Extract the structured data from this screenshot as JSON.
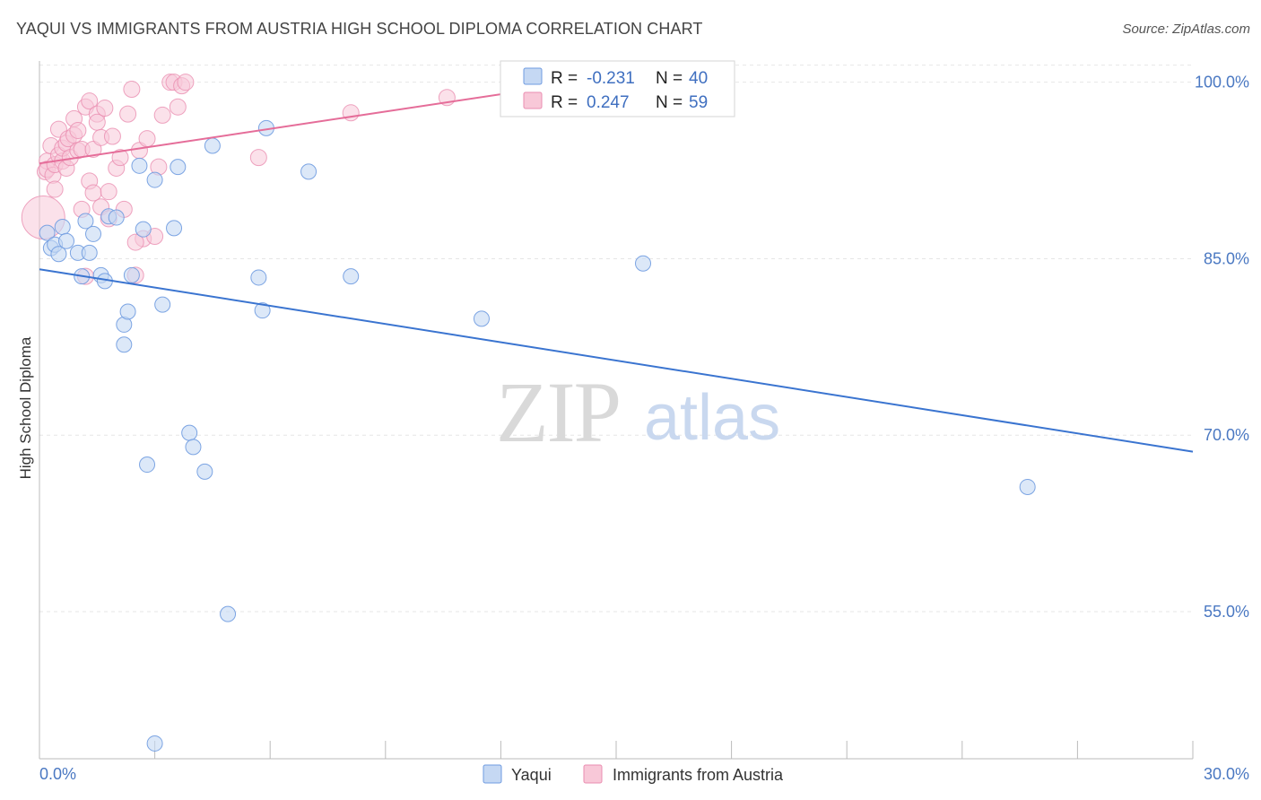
{
  "title": "YAQUI VS IMMIGRANTS FROM AUSTRIA HIGH SCHOOL DIPLOMA CORRELATION CHART",
  "source": "Source: ZipAtlas.com",
  "watermark": {
    "zip": "ZIP",
    "atlas": "atlas"
  },
  "colors": {
    "yaqui_fill": "#c5d8f3",
    "yaqui_stroke": "#6f9be0",
    "yaqui_line": "#3a74d0",
    "austria_fill": "#f8c8d8",
    "austria_stroke": "#ea8db0",
    "austria_line": "#e56d99",
    "grid": "#e6e6e6",
    "axis_text": "#4a78c2"
  },
  "legend": {
    "r_label": "R =",
    "n_label": "N =",
    "rows": [
      {
        "r": "-0.231",
        "n": "40"
      },
      {
        "r": "0.247",
        "n": "59"
      }
    ]
  },
  "bottom_legend": [
    "Yaqui",
    "Immigrants from Austria"
  ],
  "chart_data": {
    "type": "scatter",
    "title": "YAQUI VS IMMIGRANTS FROM AUSTRIA HIGH SCHOOL DIPLOMA CORRELATION CHART",
    "xlabel": "",
    "ylabel": "High School Diploma",
    "xlim": [
      0,
      30
    ],
    "ylim": [
      42.5,
      101.5
    ],
    "x_tick_labels": [
      "0.0%",
      "30.0%"
    ],
    "y_ticks": [
      55,
      70,
      85,
      100
    ],
    "y_tick_labels": [
      "55.0%",
      "70.0%",
      "85.0%",
      "100.0%"
    ],
    "grid": true,
    "series": [
      {
        "name": "Yaqui",
        "r": -0.231,
        "n": 40,
        "trend": {
          "x": [
            0,
            30
          ],
          "y": [
            84.1,
            68.6
          ]
        },
        "points": [
          [
            0.2,
            87.2
          ],
          [
            0.3,
            85.9
          ],
          [
            0.4,
            86.2
          ],
          [
            0.5,
            85.4
          ],
          [
            0.6,
            87.7
          ],
          [
            0.7,
            86.5
          ],
          [
            1.0,
            85.5
          ],
          [
            1.1,
            83.5
          ],
          [
            1.2,
            88.2
          ],
          [
            1.4,
            87.1
          ],
          [
            1.6,
            83.6
          ],
          [
            1.7,
            83.1
          ],
          [
            1.8,
            88.6
          ],
          [
            2.0,
            88.5
          ],
          [
            2.2,
            79.4
          ],
          [
            2.2,
            77.7
          ],
          [
            2.3,
            80.5
          ],
          [
            2.4,
            83.6
          ],
          [
            2.6,
            92.9
          ],
          [
            2.7,
            87.5
          ],
          [
            3.0,
            91.7
          ],
          [
            3.2,
            81.1
          ],
          [
            3.5,
            87.6
          ],
          [
            3.6,
            92.8
          ],
          [
            3.9,
            70.2
          ],
          [
            4.0,
            69.0
          ],
          [
            4.3,
            66.9
          ],
          [
            4.5,
            94.6
          ],
          [
            4.9,
            54.8
          ],
          [
            5.7,
            83.4
          ],
          [
            5.8,
            80.6
          ],
          [
            5.9,
            96.1
          ],
          [
            7.0,
            92.4
          ],
          [
            8.1,
            83.5
          ],
          [
            11.5,
            79.9
          ],
          [
            15.7,
            84.6
          ],
          [
            25.7,
            65.6
          ],
          [
            2.8,
            67.5
          ],
          [
            3.0,
            43.8
          ],
          [
            1.3,
            85.5
          ]
        ]
      },
      {
        "name": "Immigrants from Austria",
        "r": 0.247,
        "n": 59,
        "trend": {
          "x": [
            0,
            14.5
          ],
          "y": [
            93.1,
            100.2
          ]
        },
        "points": [
          [
            0.1,
            88.5
          ],
          [
            0.15,
            92.4
          ],
          [
            0.2,
            93.3
          ],
          [
            0.2,
            92.6
          ],
          [
            0.3,
            94.6
          ],
          [
            0.35,
            92.1
          ],
          [
            0.4,
            93.0
          ],
          [
            0.4,
            90.9
          ],
          [
            0.5,
            93.8
          ],
          [
            0.5,
            96.0
          ],
          [
            0.6,
            93.3
          ],
          [
            0.6,
            94.4
          ],
          [
            0.7,
            92.7
          ],
          [
            0.7,
            94.8
          ],
          [
            0.75,
            95.2
          ],
          [
            0.8,
            93.6
          ],
          [
            0.9,
            96.9
          ],
          [
            0.9,
            95.5
          ],
          [
            1.0,
            95.9
          ],
          [
            1.0,
            94.2
          ],
          [
            1.1,
            94.3
          ],
          [
            1.1,
            89.2
          ],
          [
            1.2,
            97.9
          ],
          [
            1.2,
            83.5
          ],
          [
            1.3,
            98.4
          ],
          [
            1.3,
            91.6
          ],
          [
            1.4,
            90.6
          ],
          [
            1.4,
            94.3
          ],
          [
            1.5,
            97.3
          ],
          [
            1.5,
            96.6
          ],
          [
            1.6,
            95.3
          ],
          [
            1.6,
            89.4
          ],
          [
            1.7,
            97.8
          ],
          [
            1.8,
            90.7
          ],
          [
            1.8,
            88.4
          ],
          [
            1.9,
            95.4
          ],
          [
            2.0,
            92.7
          ],
          [
            2.1,
            93.6
          ],
          [
            2.2,
            89.2
          ],
          [
            2.3,
            97.3
          ],
          [
            2.4,
            99.4
          ],
          [
            2.5,
            83.6
          ],
          [
            2.6,
            94.2
          ],
          [
            2.7,
            86.7
          ],
          [
            2.8,
            95.2
          ],
          [
            3.0,
            86.9
          ],
          [
            3.1,
            92.8
          ],
          [
            3.2,
            97.2
          ],
          [
            3.4,
            100.0
          ],
          [
            3.5,
            100.0
          ],
          [
            3.6,
            97.9
          ],
          [
            3.7,
            99.7
          ],
          [
            3.8,
            100.0
          ],
          [
            5.7,
            93.6
          ],
          [
            8.1,
            97.4
          ],
          [
            10.6,
            98.7
          ],
          [
            13.6,
            100.1
          ],
          [
            14.2,
            100.1
          ],
          [
            2.5,
            86.4
          ]
        ]
      }
    ]
  }
}
